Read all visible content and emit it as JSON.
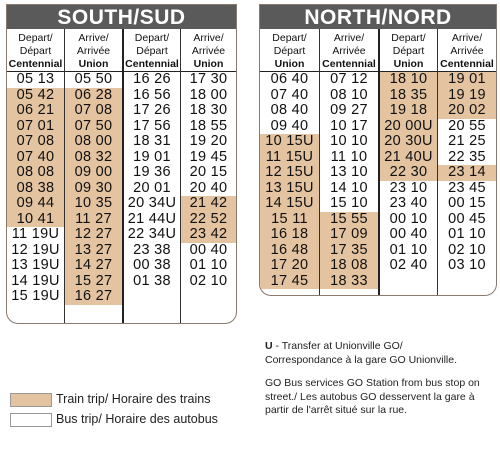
{
  "south": {
    "title": "SOUTH/SUD",
    "groups": [
      {
        "columns": [
          {
            "h": [
              "Depart/",
              "Départ",
              "Centennial"
            ],
            "rows": [
              {
                "v": "05 13",
                "t": false
              },
              {
                "v": "05 42",
                "t": true
              },
              {
                "v": "06 21",
                "t": true
              },
              {
                "v": "07 01",
                "t": true
              },
              {
                "v": "07 08",
                "t": true
              },
              {
                "v": "07 40",
                "t": true
              },
              {
                "v": "08 08",
                "t": true
              },
              {
                "v": "08 38",
                "t": true
              },
              {
                "v": "09 44",
                "t": true
              },
              {
                "v": "10 41",
                "t": true
              },
              {
                "v": "11 19U",
                "t": false
              },
              {
                "v": "12 19U",
                "t": false
              },
              {
                "v": "13 19U",
                "t": false
              },
              {
                "v": "14 19U",
                "t": false
              },
              {
                "v": "15 19U",
                "t": false
              }
            ]
          },
          {
            "h": [
              "Arrive/",
              "Arrivée",
              "Union"
            ],
            "rows": [
              {
                "v": "05 50",
                "t": false
              },
              {
                "v": "06 28",
                "t": true
              },
              {
                "v": "07 08",
                "t": true
              },
              {
                "v": "07 50",
                "t": true
              },
              {
                "v": "08 00",
                "t": true
              },
              {
                "v": "08 32",
                "t": true
              },
              {
                "v": "09 00",
                "t": true
              },
              {
                "v": "09 30",
                "t": true
              },
              {
                "v": "10 35",
                "t": true
              },
              {
                "v": "11 27",
                "t": true
              },
              {
                "v": "12 27",
                "t": true
              },
              {
                "v": "13 27",
                "t": true
              },
              {
                "v": "14 27",
                "t": true
              },
              {
                "v": "15 27",
                "t": true
              },
              {
                "v": "16 27",
                "t": true
              }
            ]
          }
        ]
      },
      {
        "columns": [
          {
            "h": [
              "Depart/",
              "Départ",
              "Centennial"
            ],
            "rows": [
              {
                "v": "16 26",
                "t": false
              },
              {
                "v": "16 56",
                "t": false
              },
              {
                "v": "17 26",
                "t": false
              },
              {
                "v": "17 56",
                "t": false
              },
              {
                "v": "18 31",
                "t": false
              },
              {
                "v": "19 01",
                "t": false
              },
              {
                "v": "19 36",
                "t": false
              },
              {
                "v": "20 01",
                "t": false
              },
              {
                "v": "20 34U",
                "t": false
              },
              {
                "v": "21 44U",
                "t": false
              },
              {
                "v": "22 34U",
                "t": false
              },
              {
                "v": "23 38",
                "t": false
              },
              {
                "v": "00 38",
                "t": false
              },
              {
                "v": "01 38",
                "t": false
              }
            ]
          },
          {
            "h": [
              "Arrive/",
              "Arrivée",
              "Union"
            ],
            "rows": [
              {
                "v": "17 30",
                "t": false
              },
              {
                "v": "18 00",
                "t": false
              },
              {
                "v": "18 30",
                "t": false
              },
              {
                "v": "18 55",
                "t": false
              },
              {
                "v": "19 20",
                "t": false
              },
              {
                "v": "19 45",
                "t": false
              },
              {
                "v": "20 15",
                "t": false
              },
              {
                "v": "20 40",
                "t": false
              },
              {
                "v": "21 42",
                "t": true
              },
              {
                "v": "22 52",
                "t": true
              },
              {
                "v": "23 42",
                "t": true
              },
              {
                "v": "00 40",
                "t": false
              },
              {
                "v": "01 10",
                "t": false
              },
              {
                "v": "02 10",
                "t": false
              }
            ]
          }
        ]
      }
    ]
  },
  "north": {
    "title": "NORTH/NORD",
    "groups": [
      {
        "columns": [
          {
            "h": [
              "Depart/",
              "Départ",
              "Union"
            ],
            "rows": [
              {
                "v": "06 40",
                "t": false
              },
              {
                "v": "07 40",
                "t": false
              },
              {
                "v": "08 40",
                "t": false
              },
              {
                "v": "09 40",
                "t": false
              },
              {
                "v": "10 15U",
                "t": true
              },
              {
                "v": "11 15U",
                "t": true
              },
              {
                "v": "12 15U",
                "t": true
              },
              {
                "v": "13 15U",
                "t": true
              },
              {
                "v": "14 15U",
                "t": true
              },
              {
                "v": "15 11",
                "t": true
              },
              {
                "v": "16 18",
                "t": true
              },
              {
                "v": "16 48",
                "t": true
              },
              {
                "v": "17 20",
                "t": true
              },
              {
                "v": "17 45",
                "t": true
              }
            ]
          },
          {
            "h": [
              "Arrive/",
              "Arrivée",
              "Centennial"
            ],
            "rows": [
              {
                "v": "07 12",
                "t": false
              },
              {
                "v": "08 10",
                "t": false
              },
              {
                "v": "09 27",
                "t": false
              },
              {
                "v": "10 17",
                "t": false
              },
              {
                "v": "10 10",
                "t": false
              },
              {
                "v": "11 10",
                "t": false
              },
              {
                "v": "13 10",
                "t": false
              },
              {
                "v": "14 10",
                "t": false
              },
              {
                "v": "15 10",
                "t": false
              },
              {
                "v": "15 55",
                "t": true
              },
              {
                "v": "17 09",
                "t": true
              },
              {
                "v": "17 35",
                "t": true
              },
              {
                "v": "18 08",
                "t": true
              },
              {
                "v": "18 33",
                "t": true
              }
            ]
          }
        ]
      },
      {
        "columns": [
          {
            "h": [
              "Depart/",
              "Départ",
              "Union"
            ],
            "rows": [
              {
                "v": "18 10",
                "t": true
              },
              {
                "v": "18 35",
                "t": true
              },
              {
                "v": "19 18",
                "t": true
              },
              {
                "v": "20 00U",
                "t": true
              },
              {
                "v": "20 30U",
                "t": true
              },
              {
                "v": "21 40U",
                "t": true
              },
              {
                "v": "22 30",
                "t": true
              },
              {
                "v": "23 10",
                "t": false
              },
              {
                "v": "23 40",
                "t": false
              },
              {
                "v": "00 10",
                "t": false
              },
              {
                "v": "00 40",
                "t": false
              },
              {
                "v": "01 10",
                "t": false
              },
              {
                "v": "02 40",
                "t": false
              }
            ]
          },
          {
            "h": [
              "Arrive/",
              "Arrivée",
              "Centennial"
            ],
            "rows": [
              {
                "v": "19 01",
                "t": true
              },
              {
                "v": "19 19",
                "t": true
              },
              {
                "v": "20 02",
                "t": true
              },
              {
                "v": "20 55",
                "t": false
              },
              {
                "v": "21 25",
                "t": false
              },
              {
                "v": "22 35",
                "t": false
              },
              {
                "v": "23 14",
                "t": true
              },
              {
                "v": "23 45",
                "t": false
              },
              {
                "v": "00 15",
                "t": false
              },
              {
                "v": "00 45",
                "t": false
              },
              {
                "v": "01 10",
                "t": false
              },
              {
                "v": "02 10",
                "t": false
              },
              {
                "v": "03 10",
                "t": false
              }
            ]
          }
        ]
      }
    ]
  },
  "legend": {
    "train": "Train trip/ Horaire des trains",
    "bus": "Bus trip/ Horaire des autobus"
  },
  "notes": {
    "u_symbol": "U",
    "u_text": " - Transfer at Unionville GO/",
    "u_text2": "Correspondance à la gare GO Unionville.",
    "bus_note": "GO Bus services GO Station from bus stop on street./ Les autobus GO desservent la gare à partir de l'arrêt situé sur la rue."
  },
  "colors": {
    "train": "#e3c3a0",
    "banner": "#5a5a5a"
  }
}
